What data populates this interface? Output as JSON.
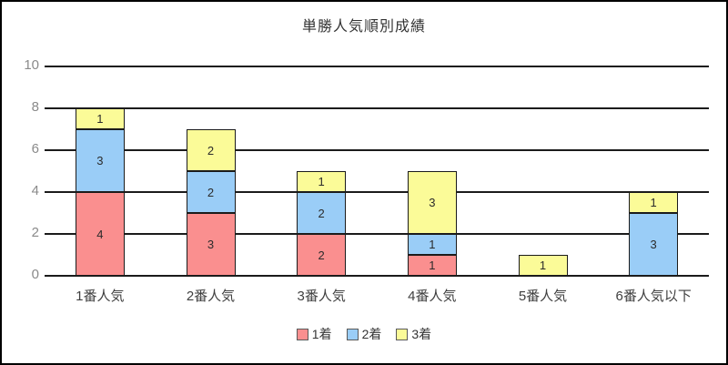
{
  "title": "単勝人気順別成績",
  "chart_data": {
    "type": "bar",
    "stacked": true,
    "title": "単勝人気順別成績",
    "xlabel": "",
    "ylabel": "",
    "categories": [
      "1番人気",
      "2番人気",
      "3番人気",
      "4番人気",
      "5番人気",
      "6番人気以下"
    ],
    "series": [
      {
        "name": "1着",
        "color": "#FA8F8F",
        "values": [
          4,
          3,
          2,
          1,
          0,
          0
        ]
      },
      {
        "name": "2着",
        "color": "#9ACDF7",
        "values": [
          3,
          2,
          2,
          1,
          0,
          3
        ]
      },
      {
        "name": "3着",
        "color": "#FBFB98",
        "values": [
          1,
          2,
          1,
          3,
          1,
          1
        ]
      }
    ],
    "ylim": [
      0,
      10
    ],
    "yticks": [
      0,
      2,
      4,
      6,
      8,
      10
    ],
    "grid": true,
    "data_labels": true,
    "legend_position": "bottom",
    "colors": {
      "grid_line": "#1b1b1b",
      "bar_border": "#1b1b1b",
      "ytick_text": "#8a8a8a",
      "label_text": "#333333",
      "background": "#ffffff",
      "frame_border": "#000000"
    }
  }
}
